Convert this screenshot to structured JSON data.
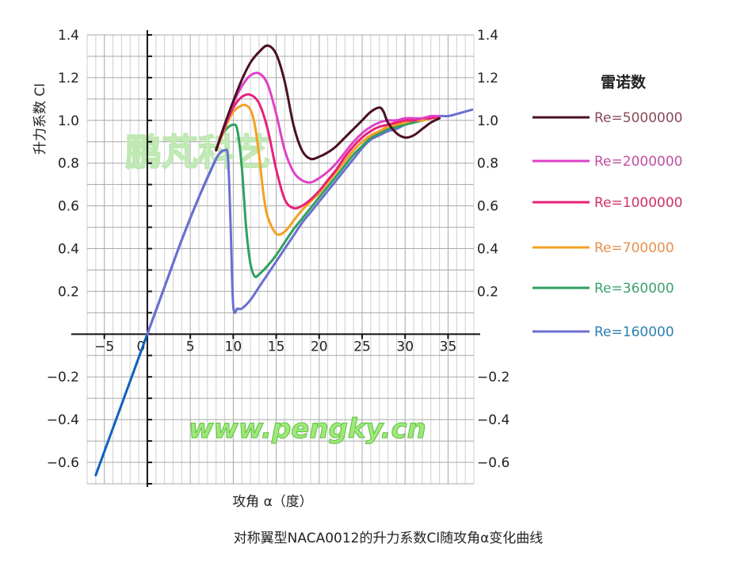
{
  "chart_data": {
    "type": "line",
    "title": "对称翼型NACA0012的升力系数Cl随攻角α变化曲线",
    "xlabel": "攻角 α（度）",
    "ylabel": "升力系数 Cl",
    "xlim": [
      -7,
      38
    ],
    "ylim": [
      -0.7,
      1.4
    ],
    "x_ticks": [
      -5,
      0,
      5,
      10,
      15,
      20,
      25,
      30,
      35
    ],
    "x_tick_labels": [
      "−5",
      "0",
      "5",
      "10",
      "15",
      "20",
      "25",
      "30",
      "35"
    ],
    "y_ticks_left": [
      1.4,
      1.2,
      1.0,
      0.8,
      0.6,
      0.4,
      0.2,
      -0.2,
      -0.4,
      -0.6
    ],
    "y_tick_labels_left": [
      "1.4",
      "1.2",
      "1.0",
      "0.8",
      "0.6",
      "0.4",
      "0.2",
      "−0.2",
      "−0.4",
      "−0.6"
    ],
    "y_ticks_right": [
      1.4,
      1.2,
      1.0,
      0.8,
      0.6,
      0.4,
      0.2,
      -0.2,
      -0.4,
      -0.6
    ],
    "y_tick_labels_right": [
      "1.4",
      "1.2",
      "1.0",
      "0.8",
      "0.6",
      "0.4",
      "0.2",
      "−0.2",
      "−0.4",
      "−0.6"
    ],
    "grid": true,
    "legend_title": "雷诺数",
    "legend_position": "right",
    "watermark_text": "鹏芃科艺",
    "watermark_url": "www.pengky.cn",
    "linear_segment": {
      "color": "#1060c0",
      "x": [
        -6,
        0,
        2,
        4,
        6,
        8
      ],
      "y": [
        -0.66,
        0.0,
        0.22,
        0.44,
        0.64,
        0.82
      ]
    },
    "series": [
      {
        "name": "Re=5000000",
        "color": "#4a1020",
        "label_color": "#8a4a5a",
        "x": [
          8,
          9,
          10,
          11,
          12,
          13,
          14,
          15,
          16,
          17,
          18,
          19,
          20,
          21,
          22,
          23,
          24,
          25,
          26,
          27,
          27.5,
          28,
          29,
          30,
          31,
          32,
          33,
          34
        ],
        "y": [
          0.86,
          0.98,
          1.09,
          1.19,
          1.27,
          1.32,
          1.35,
          1.31,
          1.18,
          0.98,
          0.86,
          0.82,
          0.83,
          0.85,
          0.88,
          0.92,
          0.96,
          1.0,
          1.04,
          1.06,
          1.04,
          0.99,
          0.94,
          0.92,
          0.93,
          0.96,
          0.99,
          1.01
        ]
      },
      {
        "name": "Re=2000000",
        "color": "#e040c8",
        "label_color": "#c050a0",
        "x": [
          8,
          9,
          10,
          11,
          12,
          13,
          14,
          15,
          16,
          17,
          18,
          19,
          20,
          21,
          22,
          23,
          24,
          25,
          26,
          27,
          28,
          29,
          30,
          31,
          32,
          33,
          34
        ],
        "y": [
          0.86,
          0.98,
          1.08,
          1.16,
          1.21,
          1.22,
          1.17,
          1.03,
          0.86,
          0.76,
          0.72,
          0.71,
          0.73,
          0.76,
          0.8,
          0.85,
          0.9,
          0.94,
          0.97,
          0.99,
          1.0,
          1.0,
          1.01,
          1.01,
          1.01,
          1.02,
          1.02
        ]
      },
      {
        "name": "Re=1000000",
        "color": "#e8207a",
        "label_color": "#d0306a",
        "x": [
          8,
          9,
          10,
          11,
          12,
          13,
          14,
          15,
          16,
          17,
          18,
          19,
          20,
          21,
          22,
          23,
          24,
          25,
          26,
          27,
          28,
          29,
          30,
          31,
          32,
          33,
          34
        ],
        "y": [
          0.86,
          0.97,
          1.06,
          1.11,
          1.12,
          1.08,
          0.96,
          0.77,
          0.63,
          0.59,
          0.6,
          0.63,
          0.67,
          0.72,
          0.77,
          0.83,
          0.88,
          0.92,
          0.95,
          0.97,
          0.98,
          0.99,
          1.0,
          1.0,
          1.01,
          1.01,
          1.02
        ]
      },
      {
        "name": "Re=700000",
        "color": "#f5a020",
        "label_color": "#e89050",
        "x": [
          8,
          9,
          10,
          11,
          11.5,
          12,
          12.5,
          13,
          13.5,
          14,
          15,
          16,
          17,
          18,
          19,
          20,
          21,
          22,
          23,
          24,
          25,
          26,
          27,
          28,
          29,
          30,
          31,
          32,
          33,
          34
        ],
        "y": [
          0.86,
          0.96,
          1.04,
          1.07,
          1.07,
          1.05,
          0.98,
          0.84,
          0.66,
          0.55,
          0.47,
          0.48,
          0.53,
          0.58,
          0.62,
          0.66,
          0.71,
          0.76,
          0.81,
          0.86,
          0.9,
          0.93,
          0.95,
          0.97,
          0.98,
          0.99,
          1.0,
          1.0,
          1.01,
          1.01
        ]
      },
      {
        "name": "Re=360000",
        "color": "#30a060",
        "label_color": "#40a070",
        "x": [
          8,
          9,
          10,
          10.5,
          11,
          11.5,
          12,
          12.5,
          13,
          14,
          15,
          16,
          17,
          18,
          19,
          20,
          21,
          22,
          23,
          24,
          25,
          26,
          27,
          28,
          29,
          30,
          31,
          32,
          33,
          34
        ],
        "y": [
          0.87,
          0.95,
          0.98,
          0.95,
          0.78,
          0.5,
          0.33,
          0.27,
          0.28,
          0.32,
          0.37,
          0.43,
          0.49,
          0.54,
          0.59,
          0.64,
          0.69,
          0.74,
          0.79,
          0.84,
          0.88,
          0.92,
          0.94,
          0.96,
          0.97,
          0.98,
          0.99,
          1.0,
          1.01,
          1.02
        ]
      },
      {
        "name": "Re=160000",
        "color": "#6a70d0",
        "label_color": "#2a80b0",
        "x": [
          0,
          2,
          4,
          6,
          8,
          9,
          9.4,
          9.7,
          10,
          10.5,
          11,
          12,
          13,
          14,
          15,
          16,
          17,
          18,
          19,
          20,
          21,
          22,
          23,
          24,
          25,
          26,
          27,
          28,
          29,
          30,
          31,
          32,
          33,
          34,
          35,
          36,
          37.8
        ],
        "y": [
          0.0,
          0.22,
          0.44,
          0.64,
          0.82,
          0.86,
          0.82,
          0.5,
          0.13,
          0.12,
          0.12,
          0.16,
          0.22,
          0.28,
          0.34,
          0.4,
          0.46,
          0.52,
          0.57,
          0.62,
          0.67,
          0.72,
          0.77,
          0.82,
          0.87,
          0.91,
          0.93,
          0.95,
          0.96,
          0.98,
          0.99,
          1.0,
          1.01,
          1.02,
          1.02,
          1.03,
          1.05
        ]
      }
    ]
  }
}
